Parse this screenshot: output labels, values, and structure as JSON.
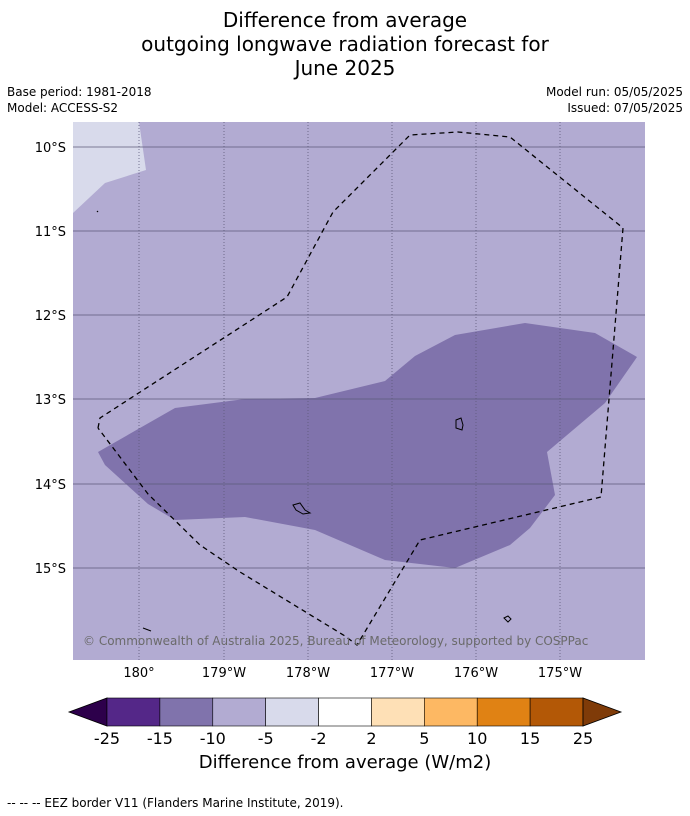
{
  "header": {
    "title_lines": [
      "Difference from average",
      "outgoing longwave radiation forecast for",
      "June 2025"
    ],
    "base_period": "Base period: 1981-2018",
    "model": "Model: ACCESS-S2",
    "model_run": "Model run: 05/05/2025",
    "issued": "Issued: 07/05/2025"
  },
  "map": {
    "lat_labels": [
      "10°S",
      "11°S",
      "12°S",
      "13°S",
      "14°S",
      "15°S"
    ],
    "lon_labels": [
      "180°",
      "179°W",
      "178°W",
      "177°W",
      "176°W",
      "175°W"
    ],
    "lat_range": [
      -16.1,
      -9.7
    ],
    "lon_range": [
      179.2,
      -174.0
    ],
    "copyright": "© Commonwealth of Australia 2025, Bureau of Meteorology, supported by COSPPac",
    "colors": {
      "background_class": "#b2abd2",
      "lighter_class": "#d8daeb",
      "darker_class": "#8073ac"
    }
  },
  "colorbar": {
    "ticks": [
      "-25",
      "-15",
      "-10",
      "-5",
      "-2",
      "2",
      "5",
      "10",
      "15",
      "25"
    ],
    "colors": [
      "#2d004b",
      "#542788",
      "#8073ac",
      "#b2abd2",
      "#d8daeb",
      "#ffffff",
      "#fee0b6",
      "#fdb863",
      "#e08214",
      "#b35806",
      "#7f3b08"
    ],
    "label": "Difference from average (W/m2)"
  },
  "footer": {
    "legend_text": "--  --  -- EEZ border V11 (Flanders Marine Institute, 2019)."
  }
}
